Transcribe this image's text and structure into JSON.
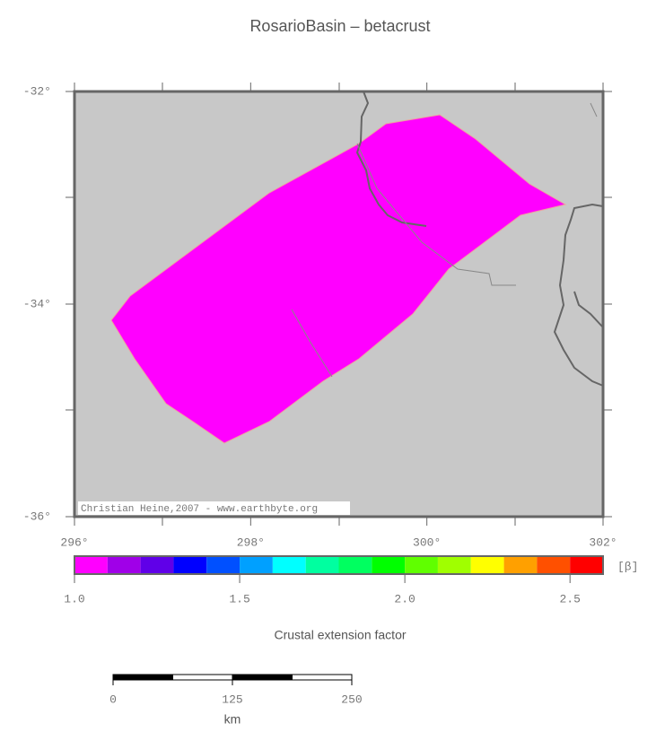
{
  "title": "RosarioBasin – betacrust",
  "map": {
    "xlim": [
      296,
      302
    ],
    "ylim": [
      -36,
      -32
    ],
    "xticks": [
      {
        "value": 296,
        "label": "296°"
      },
      {
        "value": 298,
        "label": "298°"
      },
      {
        "value": 300,
        "label": "300°"
      },
      {
        "value": 302,
        "label": "302°"
      }
    ],
    "yticks": [
      {
        "value": -32,
        "label": "-32°"
      },
      {
        "value": -34,
        "label": "-34°"
      },
      {
        "value": -36,
        "label": "-36°"
      }
    ],
    "credit": "Christian Heine,2007 - www.earthbyte.org"
  },
  "colorbar": {
    "label": "Crustal extension factor",
    "unit": "[β]",
    "xlim": [
      1,
      2.6
    ],
    "bounds": [
      1,
      1.1,
      1.2,
      1.3,
      1.4,
      1.5,
      1.6,
      1.7,
      1.8,
      1.9,
      2,
      2.1,
      2.2,
      2.3,
      2.4,
      2.5,
      2.6
    ],
    "colors": [
      "#ff00ff",
      "#a000e8",
      "#6000e8",
      "#0000ff",
      "#0050ff",
      "#00a0ff",
      "#00ffff",
      "#00ffa0",
      "#00ff60",
      "#00ff00",
      "#60ff00",
      "#a0ff00",
      "#ffff00",
      "#ffa000",
      "#ff5000",
      "#ff0000"
    ],
    "ticks": [
      {
        "value": 1,
        "label": "1.0"
      },
      1.5,
      {
        "value": 2,
        "label": "2.0"
      },
      2.5
    ]
  },
  "scalebar": {
    "xlim": [
      0,
      250
    ],
    "ticks": [
      0,
      125,
      250
    ],
    "unit": "km"
  }
}
